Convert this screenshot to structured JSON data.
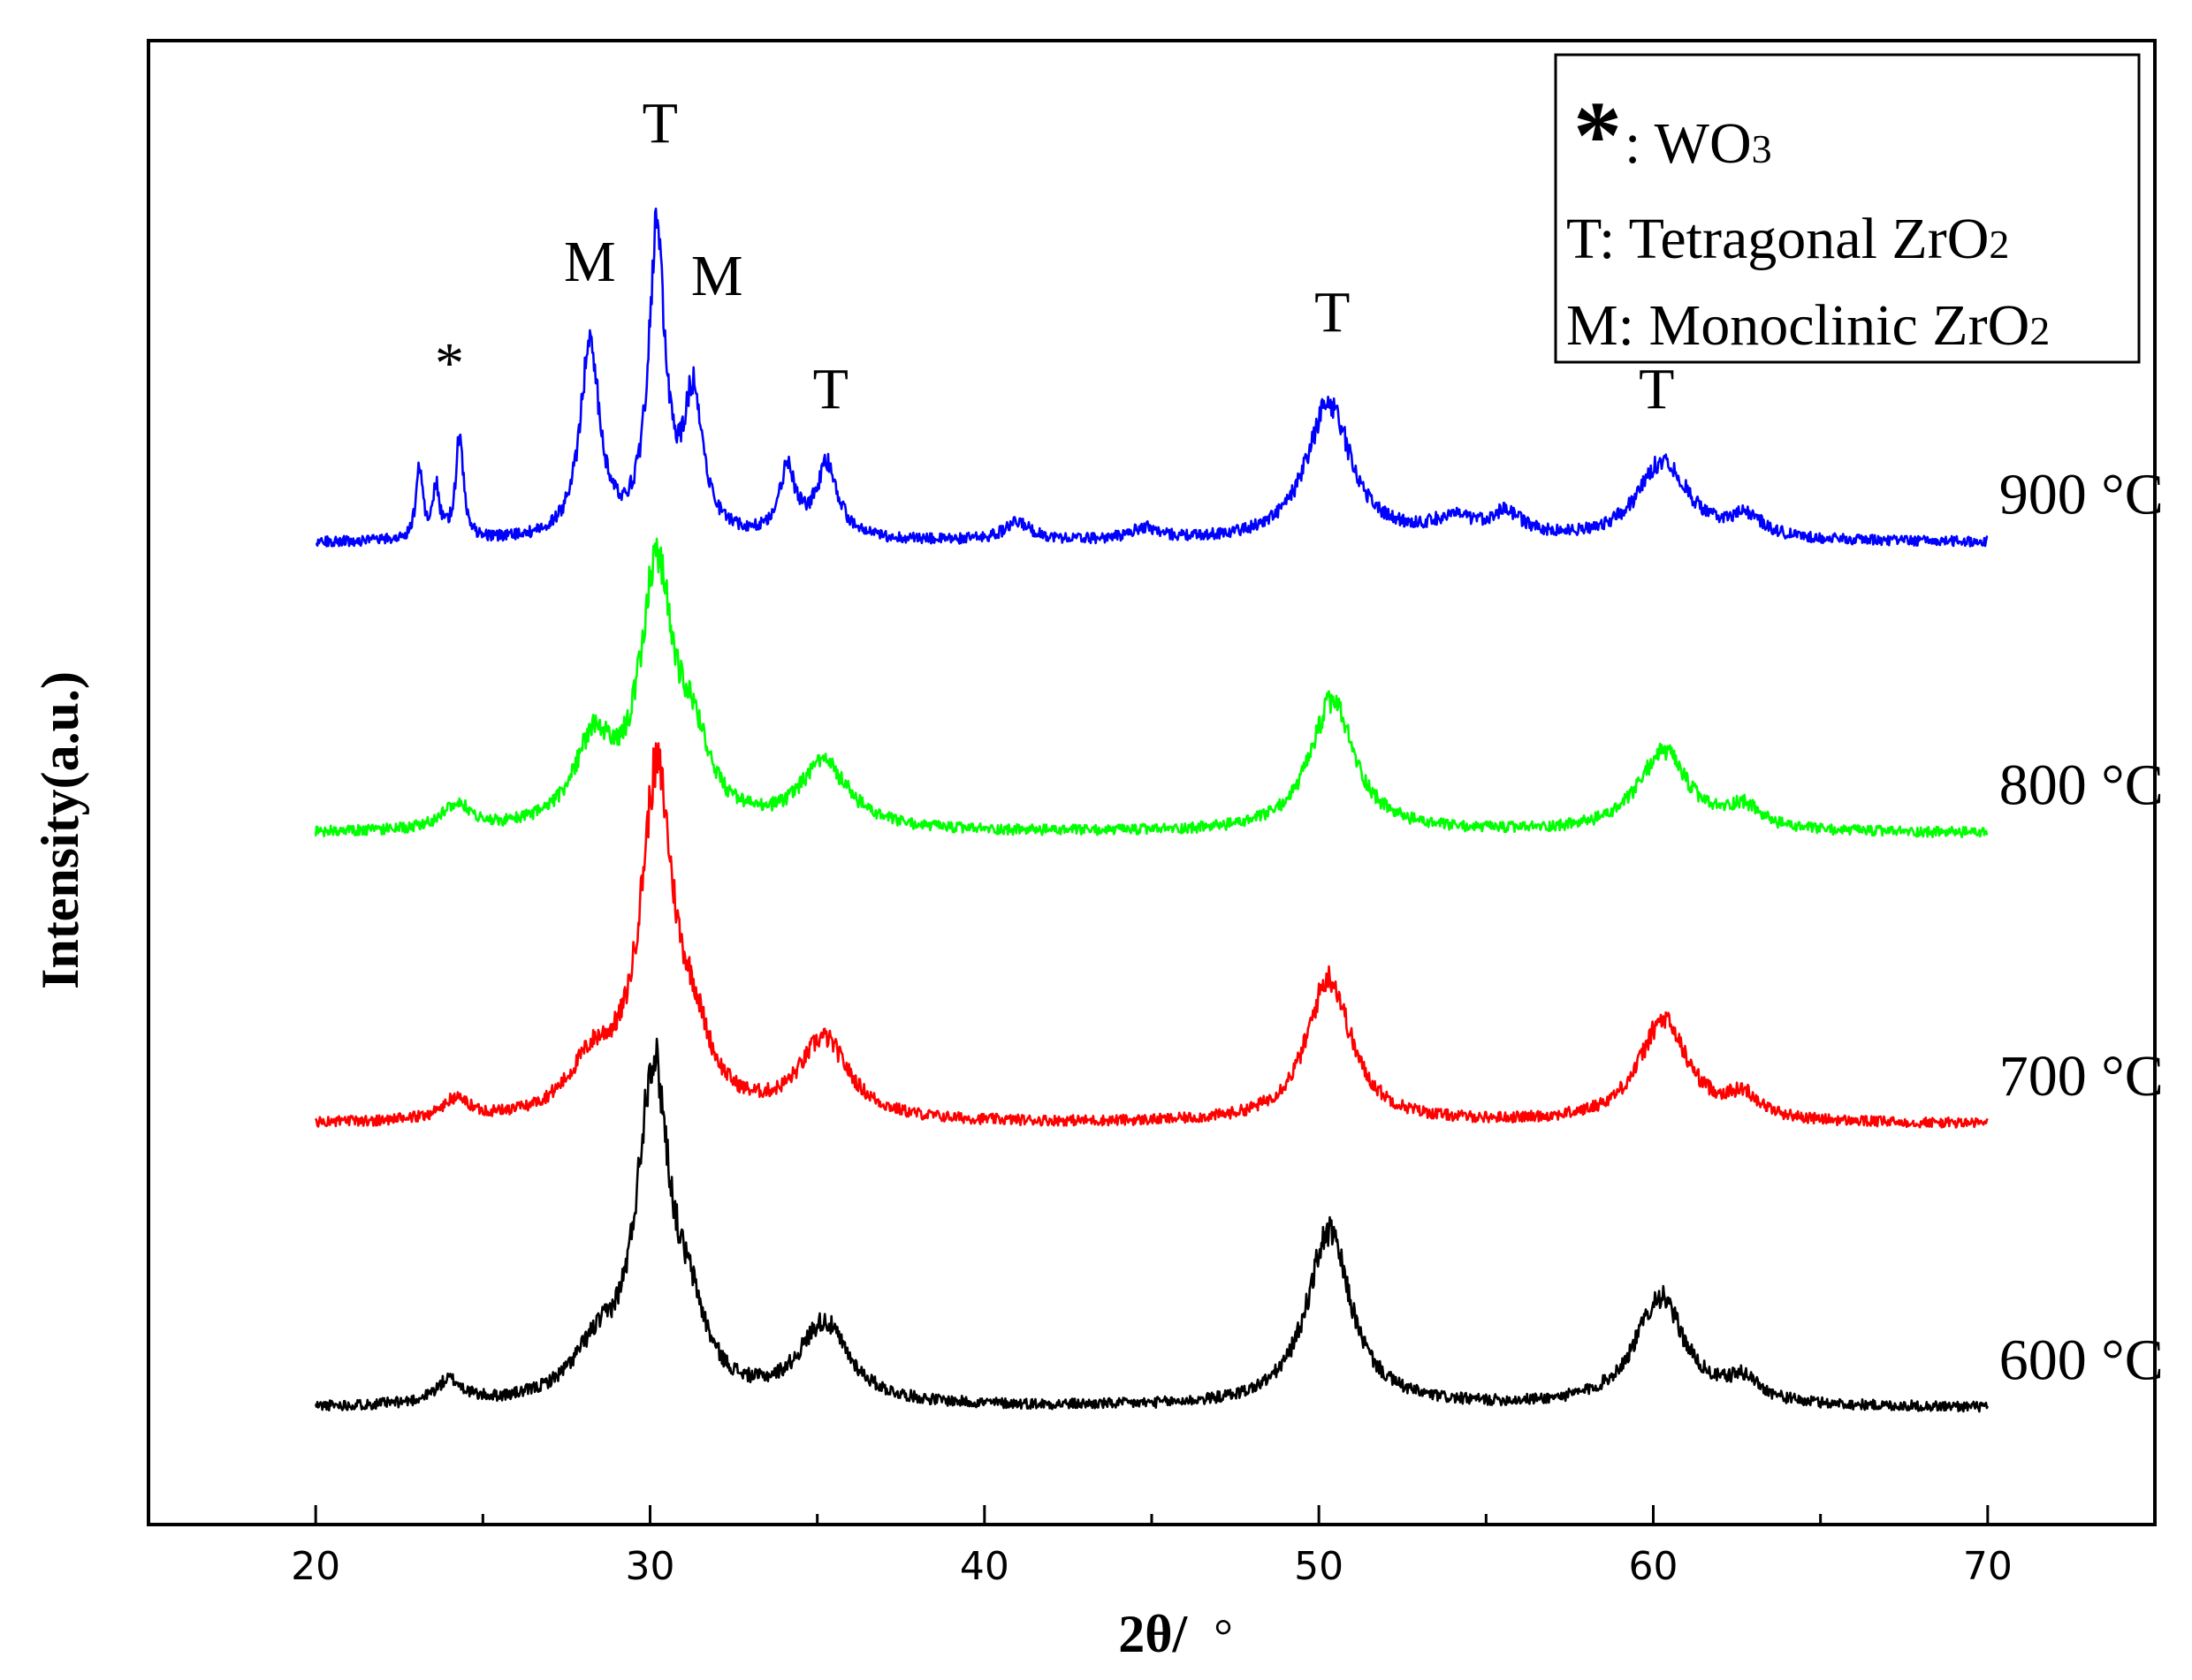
{
  "chart_data": {
    "type": "line",
    "title": "",
    "xlabel_main": "2θ/",
    "xlabel_unit": "°",
    "ylabel": "Intensity(a.u.)",
    "xlim": [
      15,
      75
    ],
    "x_ticks": [
      20,
      30,
      40,
      50,
      60,
      70
    ],
    "x_tick_labels": [
      "20",
      "30",
      "40",
      "50",
      "60",
      "70"
    ],
    "y_ticks": false,
    "ylim": [
      0,
      10.2
    ],
    "series": [
      {
        "name": "600 °C",
        "label": "600 °C",
        "color": "#000000",
        "offset": 0.8,
        "seed": 11,
        "peaks": [
          [
            24.0,
            0.16,
            0.5
          ],
          [
            28.4,
            0.3,
            0.9
          ],
          [
            30.1,
            2.25,
            0.6
          ],
          [
            31.2,
            0.4,
            0.6
          ],
          [
            35.2,
            0.55,
            0.9
          ],
          [
            50.3,
            1.2,
            0.8
          ],
          [
            60.2,
            0.75,
            0.9
          ],
          [
            62.7,
            0.15,
            0.6
          ]
        ]
      },
      {
        "name": "700 °C",
        "label": "700 °C",
        "color": "#ff0000",
        "offset": 2.75,
        "seed": 23,
        "peaks": [
          [
            24.2,
            0.14,
            0.5
          ],
          [
            28.3,
            0.35,
            0.9
          ],
          [
            30.2,
            2.3,
            0.6
          ],
          [
            31.3,
            0.4,
            0.6
          ],
          [
            35.2,
            0.55,
            0.9
          ],
          [
            50.3,
            1.0,
            0.8
          ],
          [
            60.3,
            0.7,
            0.9
          ],
          [
            62.7,
            0.15,
            0.6
          ]
        ]
      },
      {
        "name": "800 °C",
        "label": "800 °C",
        "color": "#00ff00",
        "offset": 4.75,
        "seed": 37,
        "peaks": [
          [
            24.2,
            0.18,
            0.5
          ],
          [
            28.3,
            0.55,
            0.7
          ],
          [
            30.2,
            1.75,
            0.6
          ],
          [
            31.3,
            0.45,
            0.6
          ],
          [
            35.2,
            0.45,
            0.9
          ],
          [
            50.4,
            0.9,
            0.8
          ],
          [
            60.3,
            0.55,
            0.9
          ],
          [
            62.7,
            0.15,
            0.6
          ]
        ]
      },
      {
        "name": "900 °C",
        "label": "900 °C",
        "color": "#0000ff",
        "offset": 6.75,
        "seed": 53,
        "peaks": [
          [
            23.1,
            0.5,
            0.12
          ],
          [
            23.6,
            0.35,
            0.12
          ],
          [
            24.3,
            0.7,
            0.14
          ],
          [
            28.2,
            1.35,
            0.35
          ],
          [
            30.2,
            2.05,
            0.3
          ],
          [
            31.3,
            0.95,
            0.35
          ],
          [
            34.1,
            0.45,
            0.3
          ],
          [
            35.3,
            0.5,
            0.4
          ],
          [
            41.0,
            0.12,
            0.5
          ],
          [
            44.8,
            0.08,
            0.5
          ],
          [
            50.3,
            0.95,
            0.8
          ],
          [
            54.0,
            0.12,
            0.8
          ],
          [
            55.6,
            0.16,
            0.6
          ],
          [
            60.3,
            0.55,
            0.9
          ],
          [
            62.8,
            0.14,
            0.6
          ]
        ]
      }
    ],
    "annotations": [
      {
        "text": "*",
        "x": 24.0,
        "y": 7.85
      },
      {
        "text": "M",
        "x": 28.2,
        "y": 8.55
      },
      {
        "text": "T",
        "x": 30.3,
        "y": 9.5
      },
      {
        "text": "M",
        "x": 32.0,
        "y": 8.45
      },
      {
        "text": "T",
        "x": 35.4,
        "y": 7.67
      },
      {
        "text": "T",
        "x": 50.4,
        "y": 8.2
      },
      {
        "text": "T",
        "x": 60.1,
        "y": 7.67
      }
    ],
    "legend": {
      "position": "top-right",
      "entries": [
        {
          "symbol": "*",
          "text": ": WO",
          "subscript": "3"
        },
        {
          "symbol": "",
          "text": "T: Tetragonal ZrO",
          "subscript": "2"
        },
        {
          "symbol": "",
          "text": "M: Monoclinic ZrO",
          "subscript": "2"
        }
      ]
    }
  }
}
